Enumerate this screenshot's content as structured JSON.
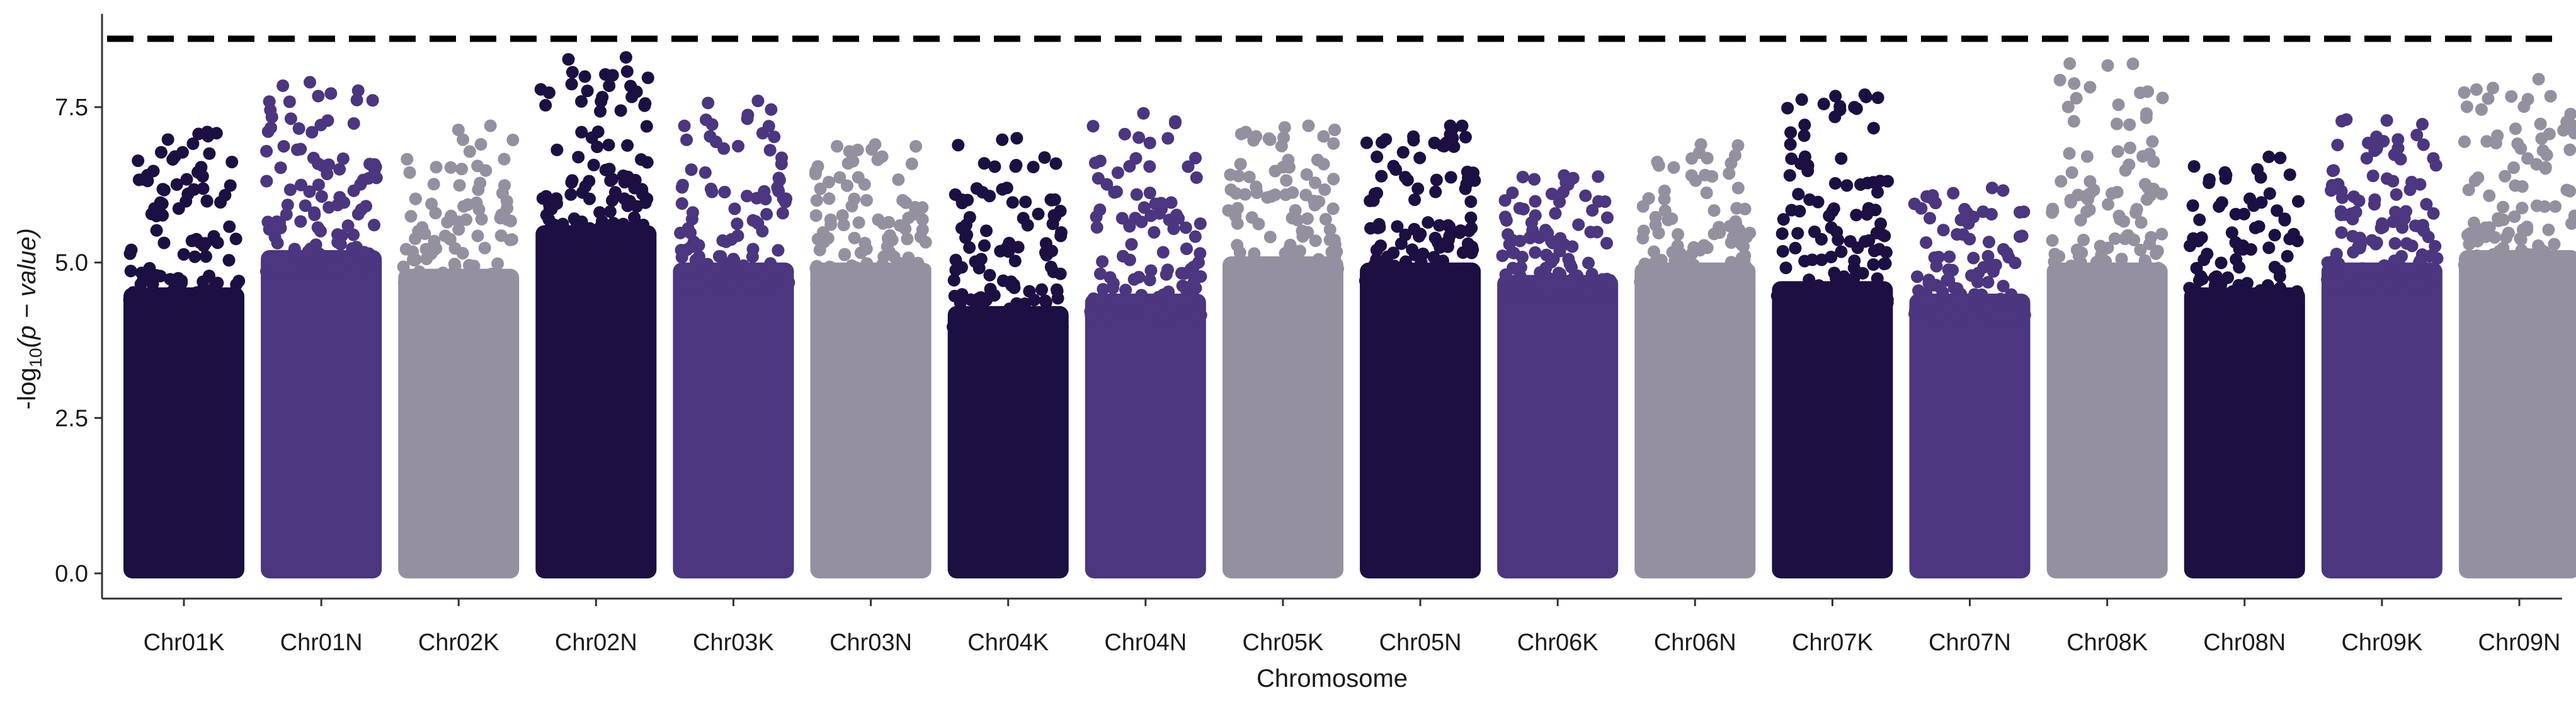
{
  "chart_data": {
    "type": "scatter",
    "subtype": "manhattan",
    "title": "",
    "xlabel": "Chromosome",
    "ylabel": {
      "prefix": "-log",
      "subscript": "10",
      "rest": "(p − value)"
    },
    "ylim": [
      0,
      8.9
    ],
    "yticks": [
      {
        "value": 0,
        "label": "0.0"
      },
      {
        "value": 2.5,
        "label": "2.5"
      },
      {
        "value": 5.0,
        "label": "5.0"
      },
      {
        "value": 7.5,
        "label": "7.5"
      }
    ],
    "threshold": {
      "value": 8.6,
      "style": "dashed",
      "color": "#000000"
    },
    "grid": false,
    "legend": "none",
    "palette": [
      "#1c0f42",
      "#4b367f",
      "#9590a0"
    ],
    "chromosomes": [
      {
        "name": "Chr01K",
        "base_top": 4.6,
        "max": 7.1,
        "color": "#1c0f42"
      },
      {
        "name": "Chr01N",
        "base_top": 5.2,
        "max": 7.9,
        "color": "#4b367f"
      },
      {
        "name": "Chr02K",
        "base_top": 4.9,
        "max": 7.2,
        "color": "#9590a0"
      },
      {
        "name": "Chr02N",
        "base_top": 5.6,
        "max": 8.3,
        "color": "#1c0f42"
      },
      {
        "name": "Chr03K",
        "base_top": 5.0,
        "max": 7.6,
        "color": "#4b367f"
      },
      {
        "name": "Chr03N",
        "base_top": 5.0,
        "max": 6.9,
        "color": "#9590a0"
      },
      {
        "name": "Chr04K",
        "base_top": 4.3,
        "max": 7.0,
        "color": "#1c0f42"
      },
      {
        "name": "Chr04N",
        "base_top": 4.5,
        "max": 7.4,
        "color": "#4b367f"
      },
      {
        "name": "Chr05K",
        "base_top": 5.1,
        "max": 7.2,
        "color": "#9590a0"
      },
      {
        "name": "Chr05N",
        "base_top": 5.0,
        "max": 7.2,
        "color": "#1c0f42"
      },
      {
        "name": "Chr06K",
        "base_top": 4.8,
        "max": 6.4,
        "color": "#4b367f"
      },
      {
        "name": "Chr06N",
        "base_top": 5.0,
        "max": 6.9,
        "color": "#9590a0"
      },
      {
        "name": "Chr07K",
        "base_top": 4.7,
        "max": 7.7,
        "color": "#1c0f42"
      },
      {
        "name": "Chr07N",
        "base_top": 4.5,
        "max": 6.2,
        "color": "#4b367f"
      },
      {
        "name": "Chr08K",
        "base_top": 5.0,
        "max": 8.2,
        "color": "#9590a0"
      },
      {
        "name": "Chr08N",
        "base_top": 4.6,
        "max": 6.7,
        "color": "#1c0f42"
      },
      {
        "name": "Chr09K",
        "base_top": 5.0,
        "max": 7.3,
        "color": "#4b367f"
      },
      {
        "name": "Chr09N",
        "base_top": 5.2,
        "max": 7.95,
        "color": "#9590a0"
      }
    ]
  }
}
